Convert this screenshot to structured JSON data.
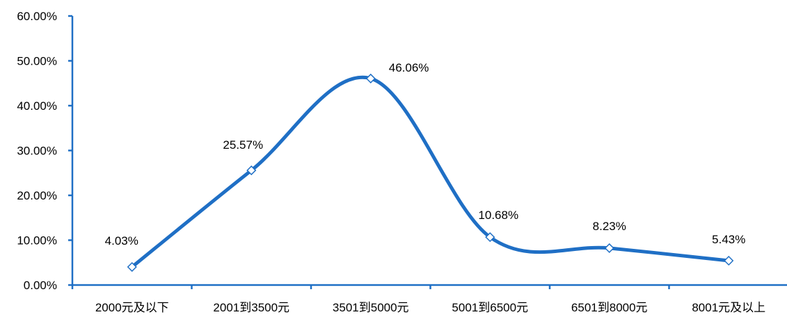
{
  "chart_data": {
    "type": "line",
    "smooth": true,
    "categories": [
      "2000元及以下",
      "2001到3500元",
      "3501到5000元",
      "5001到6500元",
      "6501到8000元",
      "8001元及以上"
    ],
    "series": [
      {
        "values": [
          4.03,
          25.57,
          46.06,
          10.68,
          8.23,
          5.43
        ]
      }
    ],
    "data_labels": [
      "4.03%",
      "25.57%",
      "46.06%",
      "10.68%",
      "8.23%",
      "5.43%"
    ],
    "y_ticks": [
      "0.00%",
      "10.00%",
      "20.00%",
      "30.00%",
      "40.00%",
      "50.00%",
      "60.00%"
    ],
    "ylim": [
      0,
      60
    ],
    "title": "",
    "xlabel": "",
    "ylabel": "",
    "grid": false,
    "line_color": "#1F6FC5",
    "axis_color": "#1F6FC5",
    "marker": "diamond-open"
  }
}
